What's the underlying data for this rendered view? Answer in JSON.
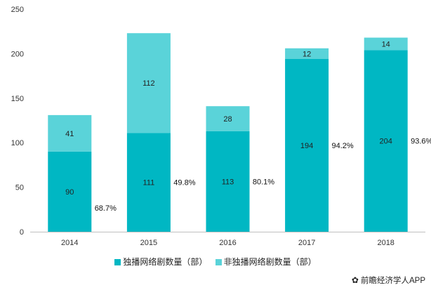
{
  "chart_data": {
    "type": "bar",
    "stacked": true,
    "categories": [
      "2014",
      "2015",
      "2016",
      "2017",
      "2018"
    ],
    "series": [
      {
        "name": "独播网络剧数量（部）",
        "color": "#00b7c3",
        "values": [
          90,
          111,
          113,
          194,
          204
        ]
      },
      {
        "name": "非独播网络剧数量（部）",
        "color": "#5ad3d9",
        "values": [
          41,
          112,
          28,
          12,
          14
        ]
      }
    ],
    "percent_labels": [
      "68.7%",
      "49.8%",
      "80.1%",
      "94.2%",
      "93.6%"
    ],
    "yticks": [
      0,
      50,
      100,
      150,
      200,
      250
    ],
    "ylim": [
      0,
      250
    ],
    "grid": false,
    "legend_position": "bottom"
  },
  "source": {
    "label": "前瞻经济学人APP",
    "icon": "paw-icon"
  }
}
